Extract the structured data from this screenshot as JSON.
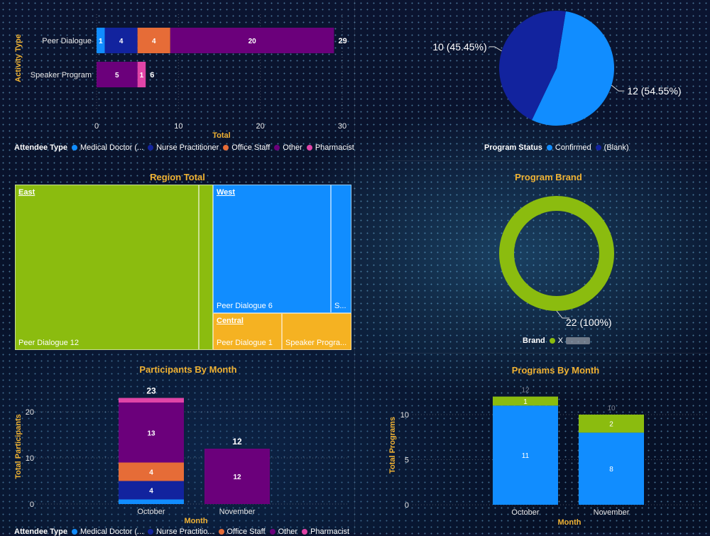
{
  "colors": {
    "medical_doctor": "#118dff",
    "nurse_practitioner": "#12239e",
    "office_staff": "#e66c37",
    "other": "#6b007b",
    "pharmacist": "#e044a7",
    "confirmed": "#118dff",
    "blank": "#12239e",
    "brand": "#8bbc0f",
    "east": "#8bbc0f",
    "west": "#118dff",
    "central": "#f5b222",
    "title": "#f0b233"
  },
  "attendee_legend": {
    "title": "Attendee Type",
    "items": [
      "Medical Doctor (...",
      "Nurse Practitioner",
      "Office Staff",
      "Other",
      "Pharmacist"
    ]
  },
  "bottom_left_legend": {
    "title": "Attendee Type",
    "items": [
      "Medical Doctor (...",
      "Nurse Practitio...",
      "Office Staff",
      "Other",
      "Pharmacist"
    ]
  },
  "program_status_legend": {
    "title": "Program Status",
    "items": [
      "Confirmed",
      "(Blank)"
    ]
  },
  "brand_legend": {
    "title": "Brand"
  },
  "chart_data": [
    {
      "type": "bar",
      "orientation": "horizontal-stacked",
      "title": "",
      "xlabel": "Total",
      "ylabel": "Activity Type",
      "categories": [
        "Peer Dialogue",
        "Speaker Program"
      ],
      "series": [
        {
          "name": "Medical Doctor (...",
          "values": [
            1,
            0
          ]
        },
        {
          "name": "Nurse Practitioner",
          "values": [
            4,
            0
          ]
        },
        {
          "name": "Office Staff",
          "values": [
            4,
            0
          ]
        },
        {
          "name": "Other",
          "values": [
            20,
            5
          ]
        },
        {
          "name": "Pharmacist",
          "values": [
            0,
            1
          ]
        }
      ],
      "totals": [
        29,
        6
      ],
      "xlim": [
        0,
        30
      ],
      "xticks": [
        "0",
        "10",
        "20",
        "30"
      ],
      "grid": true,
      "legend": "bottom"
    },
    {
      "type": "pie",
      "title": "",
      "labels": [
        "Confirmed",
        "(Blank)"
      ],
      "values": [
        12,
        10
      ],
      "data_labels": [
        "12 (54.55%)",
        "10 (45.45%)"
      ],
      "legend": "bottom"
    },
    {
      "type": "treemap",
      "title": "Region Total",
      "groups": [
        {
          "name": "East",
          "items": [
            {
              "label": "Peer Dialogue 12",
              "value": 12
            },
            {
              "label": "",
              "value": 1
            }
          ]
        },
        {
          "name": "West",
          "items": [
            {
              "label": "Peer Dialogue 6",
              "value": 6
            },
            {
              "label": "S...",
              "value": 1
            }
          ]
        },
        {
          "name": "Central",
          "items": [
            {
              "label": "Peer Dialogue 1",
              "value": 1
            },
            {
              "label": "Speaker Progra...",
              "value": 1
            }
          ]
        }
      ]
    },
    {
      "type": "pie",
      "variant": "donut",
      "title": "Program Brand",
      "labels": [
        "X"
      ],
      "values": [
        22
      ],
      "data_labels": [
        "22 (100%)"
      ],
      "legend": "bottom"
    },
    {
      "type": "bar",
      "orientation": "vertical-stacked",
      "title": "Participants By Month",
      "xlabel": "Month",
      "ylabel": "Total Participants",
      "categories": [
        "October",
        "November"
      ],
      "series": [
        {
          "name": "Medical Doctor (...",
          "values": [
            1,
            0
          ]
        },
        {
          "name": "Nurse Practitio...",
          "values": [
            4,
            0
          ]
        },
        {
          "name": "Office Staff",
          "values": [
            4,
            0
          ]
        },
        {
          "name": "Other",
          "values": [
            13,
            12
          ]
        },
        {
          "name": "Pharmacist",
          "values": [
            1,
            0
          ]
        }
      ],
      "totals": [
        23,
        12
      ],
      "ylim": [
        0,
        23
      ],
      "yticks": [
        "0",
        "10",
        "20"
      ],
      "grid": true,
      "legend": "bottom"
    },
    {
      "type": "bar",
      "orientation": "vertical-stacked",
      "title": "Programs By Month",
      "xlabel": "Month",
      "ylabel": "Total Programs",
      "categories": [
        "October",
        "November"
      ],
      "series": [
        {
          "values": [
            11,
            8
          ]
        },
        {
          "values": [
            1,
            2
          ]
        }
      ],
      "totals": [
        12,
        10
      ],
      "ylim": [
        0,
        12
      ],
      "yticks": [
        "0",
        "5",
        "10"
      ],
      "grid": true,
      "legend": "bottom"
    }
  ]
}
